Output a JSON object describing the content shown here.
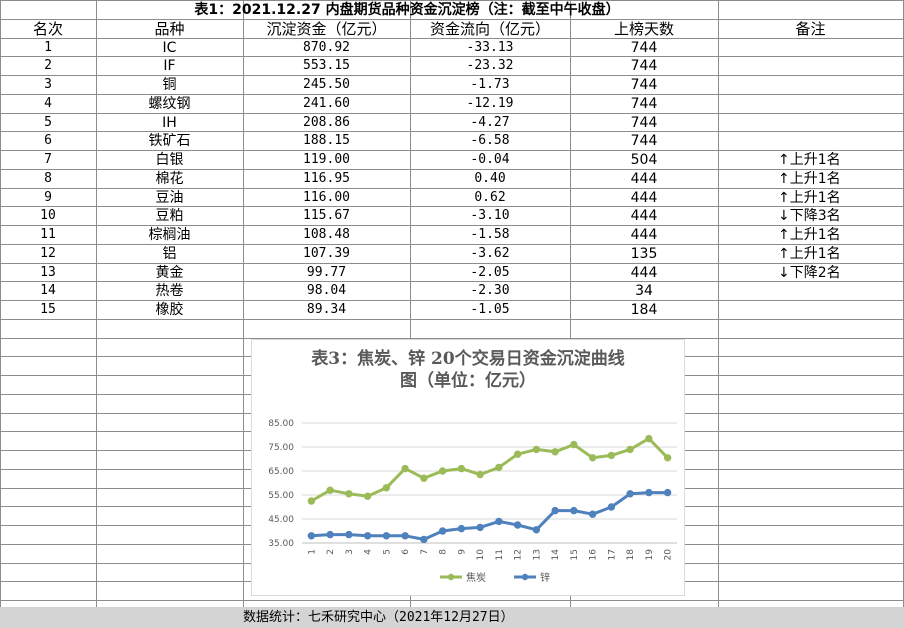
{
  "table": {
    "title": "表1：2021.12.27 内盘期货品种资金沉淀榜（注：截至中午收盘）",
    "headers": [
      "名次",
      "品种",
      "沉淀资金（亿元）",
      "资金流向（亿元）",
      "上榜天数",
      "备注"
    ],
    "rows": [
      {
        "rank": "1",
        "name": "IC",
        "funds": "870.92",
        "flow": "-33.13",
        "days": "744",
        "note": ""
      },
      {
        "rank": "2",
        "name": "IF",
        "funds": "553.15",
        "flow": "-23.32",
        "days": "744",
        "note": ""
      },
      {
        "rank": "3",
        "name": "铜",
        "funds": "245.50",
        "flow": "-1.73",
        "days": "744",
        "note": ""
      },
      {
        "rank": "4",
        "name": "螺纹钢",
        "funds": "241.60",
        "flow": "-12.19",
        "days": "744",
        "note": ""
      },
      {
        "rank": "5",
        "name": "IH",
        "funds": "208.86",
        "flow": "-4.27",
        "days": "744",
        "note": ""
      },
      {
        "rank": "6",
        "name": "铁矿石",
        "funds": "188.15",
        "flow": "-6.58",
        "days": "744",
        "note": ""
      },
      {
        "rank": "7",
        "name": "白银",
        "funds": "119.00",
        "flow": "-0.04",
        "days": "504",
        "note": "↑上升1名"
      },
      {
        "rank": "8",
        "name": "棉花",
        "funds": "116.95",
        "flow": "0.40",
        "days": "444",
        "note": "↑上升1名"
      },
      {
        "rank": "9",
        "name": "豆油",
        "funds": "116.00",
        "flow": "0.62",
        "days": "444",
        "note": "↑上升1名"
      },
      {
        "rank": "10",
        "name": "豆粕",
        "funds": "115.67",
        "flow": "-3.10",
        "days": "444",
        "note": "↓下降3名"
      },
      {
        "rank": "11",
        "name": "棕榈油",
        "funds": "108.48",
        "flow": "-1.58",
        "days": "444",
        "note": "↑上升1名"
      },
      {
        "rank": "12",
        "name": "铝",
        "funds": "107.39",
        "flow": "-3.62",
        "days": "135",
        "note": "↑上升1名"
      },
      {
        "rank": "13",
        "name": "黄金",
        "funds": "99.77",
        "flow": "-2.05",
        "days": "444",
        "note": "↓下降2名"
      },
      {
        "rank": "14",
        "name": "热卷",
        "funds": "98.04",
        "flow": "-2.30",
        "days": "34",
        "note": ""
      },
      {
        "rank": "15",
        "name": "橡胶",
        "funds": "89.34",
        "flow": "-1.05",
        "days": "184",
        "note": ""
      }
    ]
  },
  "footer": {
    "source": "数据统计：七禾研究中心（2021年12月27日）"
  },
  "chart_data": {
    "type": "line",
    "title": "表3：焦炭、锌 20个交易日资金沉淀曲线图（单位：亿元）",
    "title_lines": [
      "表3：焦炭、锌 20个交易日资金沉淀曲线",
      "图（单位：亿元）"
    ],
    "x": [
      "1",
      "2",
      "3",
      "4",
      "5",
      "6",
      "7",
      "8",
      "9",
      "10",
      "11",
      "12",
      "13",
      "14",
      "15",
      "16",
      "17",
      "18",
      "19",
      "20"
    ],
    "y_ticks": [
      "35.00",
      "45.00",
      "55.00",
      "65.00",
      "75.00",
      "85.00"
    ],
    "ylim": [
      35,
      85
    ],
    "grid": true,
    "legend_position": "bottom",
    "series": [
      {
        "name": "焦炭",
        "color": "#9bbb59",
        "values": [
          52.5,
          57.0,
          55.5,
          54.5,
          58.0,
          66.0,
          62.0,
          65.0,
          66.0,
          63.5,
          66.5,
          72.0,
          74.0,
          73.0,
          76.0,
          70.5,
          71.5,
          74.0,
          78.5,
          70.5
        ]
      },
      {
        "name": "锌",
        "color": "#4f81bd",
        "values": [
          38.0,
          38.5,
          38.5,
          38.0,
          38.0,
          38.0,
          36.5,
          40.0,
          41.0,
          41.5,
          44.0,
          42.5,
          40.5,
          48.5,
          48.5,
          47.0,
          50.0,
          55.5,
          56.0,
          56.0
        ]
      }
    ]
  }
}
